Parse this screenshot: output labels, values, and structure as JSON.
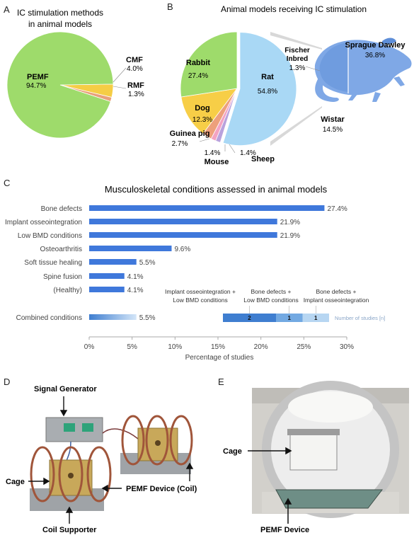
{
  "panels": {
    "a": "A",
    "b": "B",
    "c": "C",
    "d": "D",
    "e": "E"
  },
  "chart_data": [
    {
      "type": "pie",
      "title": "IC stimulation methods in animal models",
      "slices": [
        {
          "label": "PEMF",
          "value": 94.7,
          "value_label": "94.7%",
          "color": "#9EDB6B"
        },
        {
          "label": "CMF",
          "value": 4.0,
          "value_label": "4.0%",
          "color": "#F5CD45"
        },
        {
          "label": "RMF",
          "value": 1.3,
          "value_label": "1.3%",
          "color": "#E8A07A"
        }
      ]
    },
    {
      "type": "pie",
      "title": "Animal models receiving IC stimulation",
      "slices": [
        {
          "label": "Rat",
          "value": 54.8,
          "value_label": "54.8%",
          "color": "#A9D8F5"
        },
        {
          "label": "Sheep",
          "value": 1.4,
          "value_label": "1.4%",
          "color": "#B9A2DD"
        },
        {
          "label": "Mouse",
          "value": 1.4,
          "value_label": "1.4%",
          "color": "#F3A3C2"
        },
        {
          "label": "Guinea pig",
          "value": 2.7,
          "value_label": "2.7%",
          "color": "#EDA07B"
        },
        {
          "label": "Dog",
          "value": 12.3,
          "value_label": "12.3%",
          "color": "#F7CE47"
        },
        {
          "label": "Rabbit",
          "value": 27.4,
          "value_label": "27.4%",
          "color": "#9EDB6B"
        }
      ],
      "rat_breakdown": [
        {
          "label": "Sprague Dawley",
          "value": 36.8,
          "value_label": "36.8%"
        },
        {
          "label": "Fischer Inbred",
          "value": 1.3,
          "value_label": "1.3%"
        },
        {
          "label": "Wistar",
          "value": 14.5,
          "value_label": "14.5%"
        }
      ]
    },
    {
      "type": "bar",
      "orientation": "horizontal",
      "title": "Musculoskeletal conditions assessed in animal models",
      "xlabel": "Percentage of studies",
      "xlim": [
        0,
        30
      ],
      "xticks": [
        "0%",
        "5%",
        "10%",
        "15%",
        "20%",
        "25%",
        "30%"
      ],
      "categories": [
        "Bone defects",
        "Implant osseointegration",
        "Low BMD conditions",
        "Osteoarthritis",
        "Soft tissue healing",
        "Spine fusion",
        "(Healthy)",
        "Combined conditions"
      ],
      "values": [
        27.4,
        21.9,
        21.9,
        9.6,
        5.5,
        4.1,
        4.1,
        5.5
      ],
      "value_labels": [
        "27.4%",
        "21.9%",
        "21.9%",
        "9.6%",
        "5.5%",
        "4.1%",
        "4.1%",
        "5.5%"
      ],
      "bar_color": "#3F78DB",
      "combined": {
        "unit_label": "Number of studies [n]",
        "segments": [
          {
            "label": "Implant osseointegration + Low BMD conditions",
            "count": 2,
            "color": "#3F7ED0"
          },
          {
            "label": "Bone defects + Low BMD conditions",
            "count": 1,
            "color": "#73A9E2"
          },
          {
            "label": "Bone defects + Implant osseointegration",
            "count": 1,
            "color": "#B7D6F2"
          }
        ]
      }
    }
  ],
  "panel_d": {
    "signal_generator": "Signal Generator",
    "cage": "Cage",
    "pemf_device": "PEMF Device (Coil)",
    "coil_supporter": "Coil Supporter"
  },
  "panel_e": {
    "cage": "Cage",
    "pemf_device": "PEMF Device"
  }
}
